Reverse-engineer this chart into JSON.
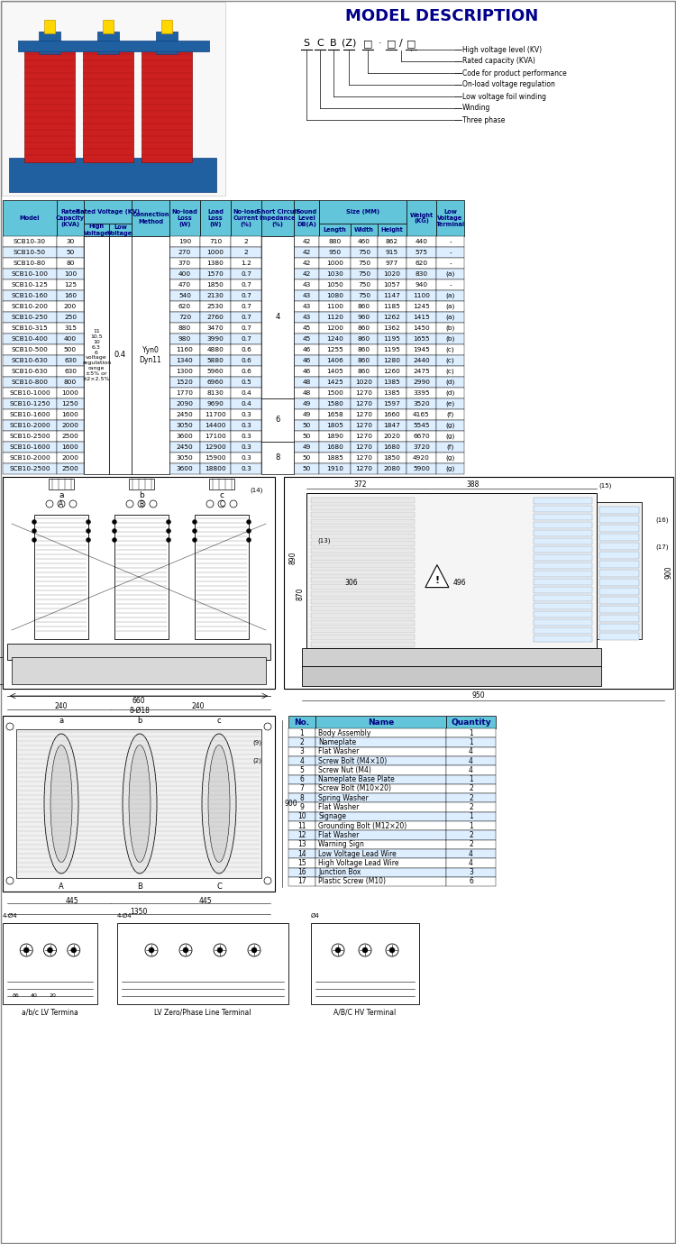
{
  "title": "MODEL DESCRIPTION",
  "title_color": "#00008B",
  "bg_color": "#ffffff",
  "header_bg": "#63C5DA",
  "header_text_color": "#000080",
  "row_colors": [
    "#ffffff",
    "#ddeeff"
  ],
  "model_desc_arrows": [
    "High voltage level (KV)",
    "Rated capacity (KVA)",
    "Code for product performance",
    "On-load voltage regulation",
    "Low voltage foil winding",
    "Winding",
    "Three phase"
  ],
  "rows": [
    [
      "SCB10-30",
      30,
      190,
      710,
      2,
      42,
      880,
      460,
      862,
      440,
      "-"
    ],
    [
      "SCB10-50",
      50,
      270,
      1000,
      2,
      42,
      950,
      750,
      915,
      575,
      "-"
    ],
    [
      "SCB10-80",
      80,
      370,
      1380,
      1.2,
      42,
      1000,
      750,
      977,
      620,
      "-"
    ],
    [
      "SCB10-100",
      100,
      400,
      1570,
      0.7,
      42,
      1030,
      750,
      1020,
      830,
      "(a)"
    ],
    [
      "SCB10-125",
      125,
      470,
      1850,
      0.7,
      43,
      1050,
      750,
      1057,
      940,
      "-"
    ],
    [
      "SCB10-160",
      160,
      540,
      2130,
      0.7,
      43,
      1080,
      750,
      1147,
      1100,
      "(a)"
    ],
    [
      "SCB10-200",
      200,
      620,
      2530,
      0.7,
      43,
      1100,
      860,
      1185,
      1245,
      "(a)"
    ],
    [
      "SCB10-250",
      250,
      720,
      2760,
      0.7,
      43,
      1120,
      960,
      1262,
      1415,
      "(a)"
    ],
    [
      "SCB10-315",
      315,
      880,
      3470,
      0.7,
      45,
      1200,
      860,
      1362,
      1450,
      "(b)"
    ],
    [
      "SCB10-400",
      400,
      980,
      3990,
      0.7,
      45,
      1240,
      860,
      1195,
      1655,
      "(b)"
    ],
    [
      "SCB10-500",
      500,
      1160,
      4880,
      0.6,
      46,
      1255,
      860,
      1195,
      1945,
      "(c)"
    ],
    [
      "SCB10-630",
      630,
      1340,
      5880,
      0.6,
      46,
      1406,
      860,
      1280,
      2440,
      "(c)"
    ],
    [
      "SCB10-630",
      630,
      1300,
      5960,
      0.6,
      46,
      1405,
      860,
      1260,
      2475,
      "(c)"
    ],
    [
      "SCB10-800",
      800,
      1520,
      6960,
      0.5,
      48,
      1425,
      1020,
      1385,
      2990,
      "(d)"
    ],
    [
      "SCB10-1000",
      1000,
      1770,
      8130,
      0.4,
      48,
      1500,
      1270,
      1385,
      3395,
      "(d)"
    ],
    [
      "SCB10-1250",
      1250,
      2090,
      9690,
      0.4,
      49,
      1580,
      1270,
      1597,
      3520,
      "(e)"
    ],
    [
      "SCB10-1600",
      1600,
      2450,
      11700,
      0.3,
      49,
      1658,
      1270,
      1660,
      4165,
      "(f)"
    ],
    [
      "SCB10-2000",
      2000,
      3050,
      14400,
      0.3,
      50,
      1805,
      1270,
      1847,
      5545,
      "(g)"
    ],
    [
      "SCB10-2500",
      2500,
      3600,
      17100,
      0.3,
      50,
      1890,
      1270,
      2020,
      6670,
      "(g)"
    ],
    [
      "SCB10-1600",
      1600,
      2450,
      12900,
      0.3,
      49,
      1680,
      1270,
      1680,
      3720,
      "(f)"
    ],
    [
      "SCB10-2000",
      2000,
      3050,
      15900,
      0.3,
      50,
      1885,
      1270,
      1850,
      4920,
      "(g)"
    ],
    [
      "SCB10-2500",
      2500,
      3600,
      18800,
      0.3,
      50,
      1910,
      1270,
      2080,
      5900,
      "(g)"
    ]
  ],
  "sc_impedance_groups": [
    [
      0,
      14,
      "4"
    ],
    [
      15,
      18,
      "6"
    ],
    [
      19,
      21,
      "8"
    ]
  ],
  "hv_text": "11\n10.5\n10\n6.3\n6\nvoltage\nregulation\nrange\n±5% or\n±2×2.5%",
  "lv_text": "0.4",
  "conn_text": "Yyn0\nDyn11",
  "parts_table_rows": [
    [
      1,
      "Body Assembly",
      1
    ],
    [
      2,
      "Nameplate",
      1
    ],
    [
      3,
      "Flat Washer",
      4
    ],
    [
      4,
      "Screw Bolt (M4×10)",
      4
    ],
    [
      5,
      "Screw Nut (M4)",
      4
    ],
    [
      6,
      "Nameplate Base Plate",
      1
    ],
    [
      7,
      "Screw Bolt (M10×20)",
      2
    ],
    [
      8,
      "Spring Washer",
      2
    ],
    [
      9,
      "Flat Washer",
      2
    ],
    [
      10,
      "Signage",
      1
    ],
    [
      11,
      "Grounding Bolt (M12×20)",
      1
    ],
    [
      12,
      "Flat Washer",
      2
    ],
    [
      13,
      "Warning Sign",
      2
    ],
    [
      14,
      "Low Voltage Lead Wire",
      4
    ],
    [
      15,
      "High Voltage Lead Wire",
      4
    ],
    [
      16,
      "Junction Box",
      3
    ],
    [
      17,
      "Plastic Screw (M10)",
      6
    ]
  ]
}
